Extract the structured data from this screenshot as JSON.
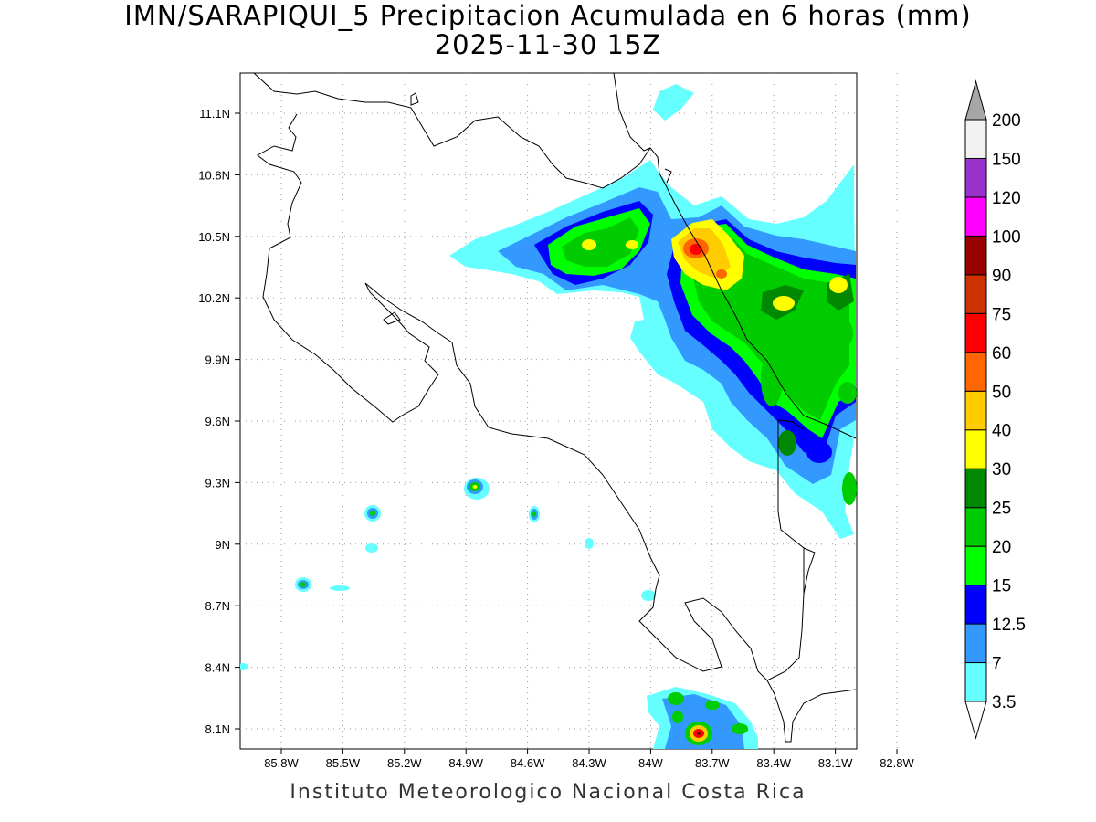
{
  "title": {
    "line1": "IMN/SARAPIQUI_5 Precipitacion Acumulada en 6 horas (mm)",
    "line2": "2025-11-30 15Z"
  },
  "credit": "Instituto Meteorologico Nacional Costa Rica",
  "map": {
    "lon_ticks": [
      "85.8W",
      "85.5W",
      "85.2W",
      "84.9W",
      "84.6W",
      "84.3W",
      "84W",
      "83.7W",
      "83.4W",
      "83.1W",
      "82.8W"
    ],
    "lat_ticks": [
      "11.1N",
      "10.8N",
      "10.5N",
      "10.2N",
      "9.9N",
      "9.6N",
      "9.3N",
      "9N",
      "8.7N",
      "8.4N",
      "8.1N"
    ]
  },
  "colorbar": {
    "labels": [
      "3.5",
      "7",
      "12.5",
      "15",
      "20",
      "25",
      "30",
      "40",
      "50",
      "60",
      "75",
      "90",
      "100",
      "120",
      "150",
      "200"
    ],
    "colors": [
      "#66ffff",
      "#3399ff",
      "#0000ff",
      "#00ff00",
      "#00cc00",
      "#008800",
      "#ffff00",
      "#ffcc00",
      "#ff6600",
      "#ff0000",
      "#cc3300",
      "#990000",
      "#ff00ff",
      "#9933cc",
      "#f2f2f2",
      "#a6a6a6"
    ]
  }
}
